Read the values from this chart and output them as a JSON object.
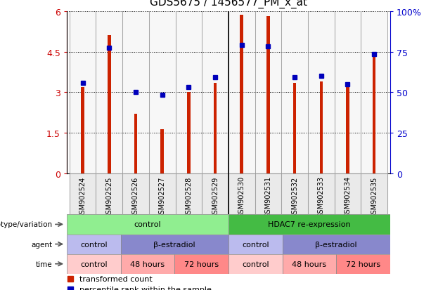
{
  "title": "GDS5675 / 1456577_PM_x_at",
  "samples": [
    "GSM902524",
    "GSM902525",
    "GSM902526",
    "GSM902527",
    "GSM902528",
    "GSM902529",
    "GSM902530",
    "GSM902531",
    "GSM902532",
    "GSM902533",
    "GSM902534",
    "GSM902535"
  ],
  "red_values": [
    3.2,
    5.1,
    2.2,
    1.65,
    3.0,
    3.35,
    5.85,
    5.8,
    3.35,
    3.4,
    3.3,
    4.4
  ],
  "blue_values": [
    3.35,
    4.65,
    3.0,
    2.9,
    3.2,
    3.55,
    4.75,
    4.7,
    3.55,
    3.6,
    3.3,
    4.4
  ],
  "ylim_left": [
    0,
    6
  ],
  "ylim_right": [
    0,
    100
  ],
  "yticks_left": [
    0,
    1.5,
    3.0,
    4.5,
    6.0
  ],
  "ytick_labels_left": [
    "0",
    "1.5",
    "3",
    "4.5",
    "6"
  ],
  "yticks_right": [
    0,
    25,
    50,
    75,
    100
  ],
  "ytick_labels_right": [
    "0",
    "25",
    "50",
    "75",
    "100%"
  ],
  "genotype_groups": [
    {
      "label": "control",
      "start": 0,
      "end": 6,
      "color": "#90EE90"
    },
    {
      "label": "HDAC7 re-expression",
      "start": 6,
      "end": 12,
      "color": "#44BB44"
    }
  ],
  "agent_groups": [
    {
      "label": "control",
      "start": 0,
      "end": 2,
      "color": "#BBBBEE"
    },
    {
      "label": "β-estradiol",
      "start": 2,
      "end": 6,
      "color": "#8888CC"
    },
    {
      "label": "control",
      "start": 6,
      "end": 8,
      "color": "#BBBBEE"
    },
    {
      "label": "β-estradiol",
      "start": 8,
      "end": 12,
      "color": "#8888CC"
    }
  ],
  "time_groups": [
    {
      "label": "control",
      "start": 0,
      "end": 2,
      "color": "#FFCCCC"
    },
    {
      "label": "48 hours",
      "start": 2,
      "end": 4,
      "color": "#FFAAAA"
    },
    {
      "label": "72 hours",
      "start": 4,
      "end": 6,
      "color": "#FF8888"
    },
    {
      "label": "control",
      "start": 6,
      "end": 8,
      "color": "#FFCCCC"
    },
    {
      "label": "48 hours",
      "start": 8,
      "end": 10,
      "color": "#FFAAAA"
    },
    {
      "label": "72 hours",
      "start": 10,
      "end": 12,
      "color": "#FF8888"
    }
  ],
  "bar_color": "#CC2200",
  "dot_color": "#0000BB",
  "left_axis_color": "#CC0000",
  "right_axis_color": "#0000CC",
  "legend_red": "transformed count",
  "legend_blue": "percentile rank within the sample"
}
